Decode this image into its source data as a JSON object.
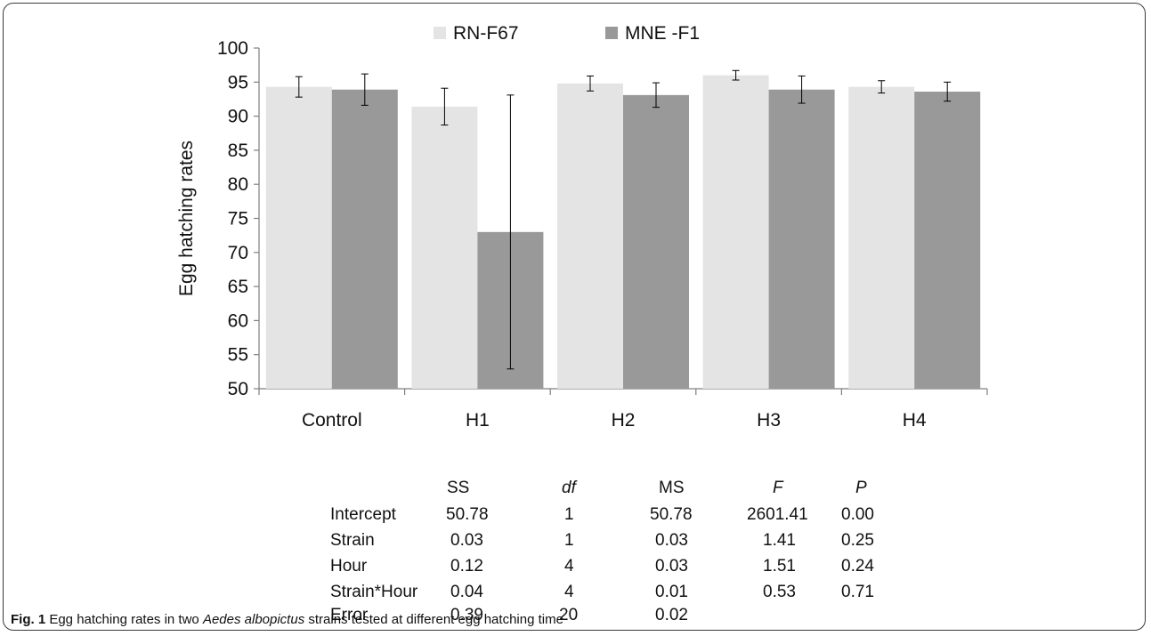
{
  "chart_data": {
    "type": "bar",
    "title": "",
    "xlabel": "",
    "ylabel": "Egg hatching rates",
    "ylim": [
      50,
      100
    ],
    "yticks": [
      50,
      55,
      60,
      65,
      70,
      75,
      80,
      85,
      90,
      95,
      100
    ],
    "categories": [
      "Control",
      "H1",
      "H2",
      "H3",
      "H4"
    ],
    "legend_position": "top",
    "series": [
      {
        "name": "RN-F67",
        "color": "#e4e4e4",
        "values": [
          94.3,
          91.4,
          94.8,
          96.0,
          94.3
        ],
        "error": [
          1.5,
          2.7,
          1.1,
          0.7,
          0.9
        ]
      },
      {
        "name": "MNE -F1",
        "color": "#999999",
        "values": [
          93.9,
          73.0,
          93.1,
          93.9,
          93.6
        ],
        "error": [
          2.3,
          20.1,
          1.8,
          2.0,
          1.4
        ]
      }
    ]
  },
  "stats_table": {
    "headers": [
      "SS",
      "df",
      "MS",
      "F",
      "P"
    ],
    "rows": [
      {
        "label": "Intercept",
        "cells": [
          "50.78",
          "1",
          "50.78",
          "2601.41",
          "0.00"
        ]
      },
      {
        "label": "Strain",
        "cells": [
          "0.03",
          "1",
          "0.03",
          "1.41",
          "0.25"
        ]
      },
      {
        "label": "Hour",
        "cells": [
          "0.12",
          "4",
          "0.03",
          "1.51",
          "0.24"
        ]
      },
      {
        "label": "Strain*Hour",
        "cells": [
          "0.04",
          "4",
          "0.01",
          "0.53",
          "0.71"
        ]
      },
      {
        "label": "Error",
        "cells": [
          "0.39",
          "20",
          "0.02",
          "",
          ""
        ]
      }
    ]
  },
  "caption": {
    "label": "Fig. 1",
    "text_before": " Egg hatching rates in two ",
    "species": "Aedes albopictus",
    "text_after": " strains tested at different egg hatching time"
  }
}
